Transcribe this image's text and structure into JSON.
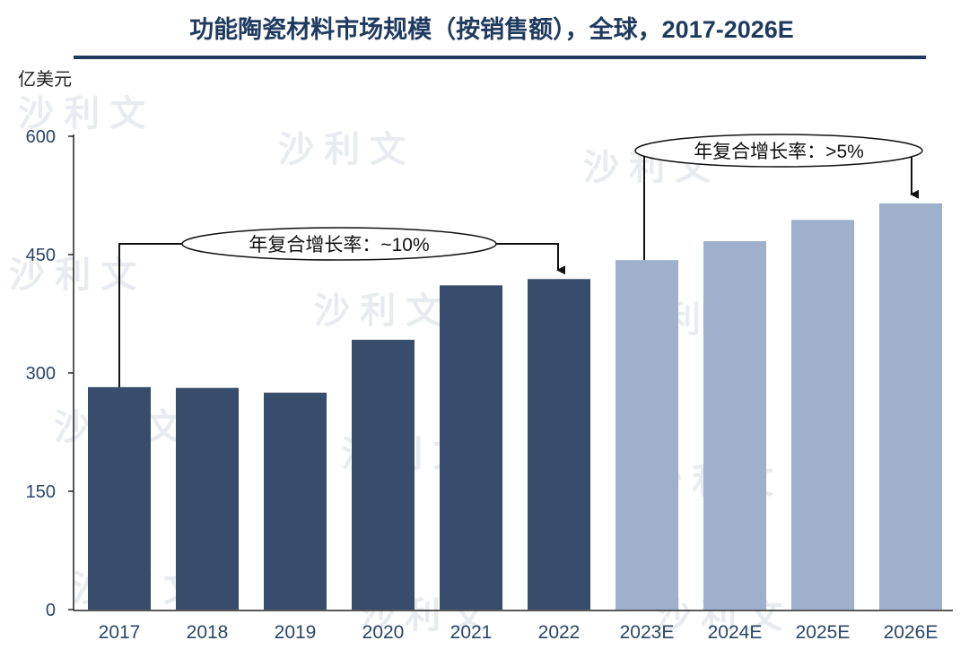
{
  "chart_data": {
    "type": "bar",
    "title": "功能陶瓷材料市场规模（按销售额），全球，2017-2026E",
    "ylabel": "亿美元",
    "xlabel": "",
    "ylim": [
      0,
      600
    ],
    "yticks": [
      "0",
      "150",
      "300",
      "450",
      "600"
    ],
    "categories": [
      "2017",
      "2018",
      "2019",
      "2020",
      "2021",
      "2022",
      "2023E",
      "2024E",
      "2025E",
      "2026E"
    ],
    "values": [
      282,
      281,
      275,
      342,
      411,
      419,
      443,
      467,
      494,
      515
    ],
    "forecast_from_index": 6,
    "colors": {
      "actual": "#374d6b",
      "forecast": "#9fb0cd",
      "title": "#1f3a5f"
    },
    "annotations": [
      {
        "text": "年复合增长率：~10%",
        "from": "2017",
        "to": "2022"
      },
      {
        "text": "年复合增长率：>5%",
        "from": "2023E",
        "to": "2026E"
      }
    ],
    "grid": false,
    "legend": "none"
  }
}
